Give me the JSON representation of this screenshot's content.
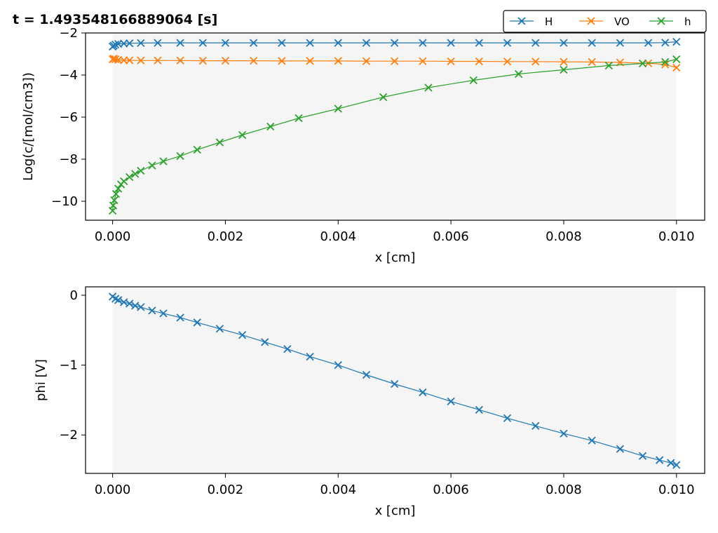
{
  "figure_title": "t = 1.493548166889064 [s]",
  "chart_data": [
    {
      "type": "line",
      "marker": "x",
      "xlabel": "x [cm]",
      "ylabel": "Log(c/[mol/cm3])",
      "xlim": [
        -0.00048,
        0.0105
      ],
      "ylim": [
        -10.9,
        -2.0
      ],
      "xticks": [
        0.0,
        0.002,
        0.004,
        0.006,
        0.008,
        0.01
      ],
      "xtick_labels": [
        "0.000",
        "0.002",
        "0.004",
        "0.006",
        "0.008",
        "0.010"
      ],
      "yticks": [
        -10,
        -8,
        -6,
        -4,
        -2
      ],
      "ytick_labels": [
        "−10",
        "−8",
        "−6",
        "−4",
        "−2"
      ],
      "grid": false,
      "legend": "top-right",
      "series": [
        {
          "name": "H",
          "color": "#1f77b4",
          "x": [
            0.0,
            2e-05,
            5e-05,
            0.0001,
            0.0002,
            0.0003,
            0.0005,
            0.0008,
            0.0012,
            0.0016,
            0.002,
            0.0025,
            0.003,
            0.0035,
            0.004,
            0.0045,
            0.005,
            0.0055,
            0.006,
            0.0065,
            0.007,
            0.0075,
            0.008,
            0.0085,
            0.009,
            0.0095,
            0.0098,
            0.01
          ],
          "y": [
            -2.65,
            -2.6,
            -2.55,
            -2.52,
            -2.5,
            -2.49,
            -2.48,
            -2.47,
            -2.47,
            -2.47,
            -2.47,
            -2.47,
            -2.47,
            -2.47,
            -2.47,
            -2.47,
            -2.47,
            -2.47,
            -2.47,
            -2.47,
            -2.47,
            -2.47,
            -2.47,
            -2.47,
            -2.47,
            -2.47,
            -2.46,
            -2.42
          ]
        },
        {
          "name": "VO",
          "color": "#ff7f0e",
          "x": [
            0.0,
            2e-05,
            5e-05,
            0.0001,
            0.0002,
            0.0003,
            0.0005,
            0.0008,
            0.0012,
            0.0016,
            0.002,
            0.0025,
            0.003,
            0.0035,
            0.004,
            0.0045,
            0.005,
            0.0055,
            0.006,
            0.0065,
            0.007,
            0.0075,
            0.008,
            0.0085,
            0.009,
            0.0095,
            0.0098,
            0.01
          ],
          "y": [
            -3.25,
            -3.22,
            -3.25,
            -3.28,
            -3.3,
            -3.3,
            -3.31,
            -3.31,
            -3.31,
            -3.32,
            -3.32,
            -3.32,
            -3.33,
            -3.33,
            -3.33,
            -3.34,
            -3.34,
            -3.34,
            -3.35,
            -3.35,
            -3.36,
            -3.36,
            -3.37,
            -3.38,
            -3.4,
            -3.44,
            -3.5,
            -3.65
          ]
        },
        {
          "name": "h",
          "color": "#2ca02c",
          "x": [
            0.0,
            1e-05,
            3e-05,
            6e-05,
            0.0001,
            0.00015,
            0.0002,
            0.0003,
            0.0004,
            0.0005,
            0.0007,
            0.0009,
            0.0012,
            0.0015,
            0.0019,
            0.0023,
            0.0028,
            0.0033,
            0.004,
            0.0048,
            0.0056,
            0.0064,
            0.0072,
            0.008,
            0.0088,
            0.0094,
            0.0098,
            0.01
          ],
          "y": [
            -10.45,
            -10.2,
            -9.95,
            -9.65,
            -9.4,
            -9.2,
            -9.05,
            -8.85,
            -8.7,
            -8.55,
            -8.3,
            -8.1,
            -7.85,
            -7.55,
            -7.2,
            -6.85,
            -6.45,
            -6.05,
            -5.6,
            -5.05,
            -4.6,
            -4.25,
            -3.95,
            -3.75,
            -3.55,
            -3.45,
            -3.38,
            -3.25
          ]
        }
      ]
    },
    {
      "type": "line",
      "marker": "x",
      "xlabel": "x [cm]",
      "ylabel": "phi [V]",
      "xlim": [
        -0.00048,
        0.0105
      ],
      "ylim": [
        -2.55,
        0.12
      ],
      "xticks": [
        0.0,
        0.002,
        0.004,
        0.006,
        0.008,
        0.01
      ],
      "xtick_labels": [
        "0.000",
        "0.002",
        "0.004",
        "0.006",
        "0.008",
        "0.010"
      ],
      "yticks": [
        0,
        -1,
        -2
      ],
      "ytick_labels": [
        "0",
        "−1",
        "−2"
      ],
      "grid": false,
      "series": [
        {
          "color": "#1f77b4",
          "x": [
            0.0,
            5e-05,
            0.0001,
            0.0002,
            0.0003,
            0.0004,
            0.0005,
            0.0007,
            0.0009,
            0.0012,
            0.0015,
            0.0019,
            0.0023,
            0.0027,
            0.0031,
            0.0035,
            0.004,
            0.0045,
            0.005,
            0.0055,
            0.006,
            0.0065,
            0.007,
            0.0075,
            0.008,
            0.0085,
            0.009,
            0.0094,
            0.0097,
            0.0099,
            0.01
          ],
          "y": [
            -0.02,
            -0.05,
            -0.07,
            -0.1,
            -0.12,
            -0.15,
            -0.17,
            -0.22,
            -0.26,
            -0.32,
            -0.39,
            -0.48,
            -0.57,
            -0.67,
            -0.77,
            -0.88,
            -1.0,
            -1.14,
            -1.27,
            -1.39,
            -1.52,
            -1.64,
            -1.76,
            -1.87,
            -1.98,
            -2.08,
            -2.2,
            -2.3,
            -2.36,
            -2.4,
            -2.43
          ]
        }
      ]
    }
  ]
}
